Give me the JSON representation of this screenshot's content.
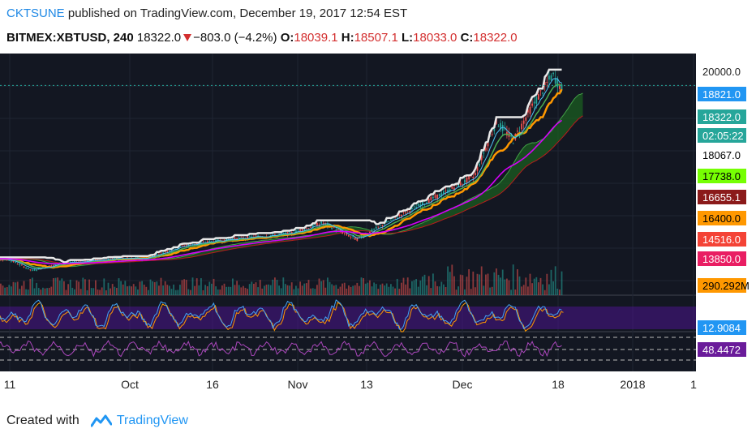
{
  "header": {
    "author": "CKTSUNE",
    "published_text": "published on TradingView.com, December 19, 2017 12:54 EST",
    "symbol": "BITMEX:XBTUSD, 240",
    "last": "18322.0",
    "change": "−803.0 (−4.2%)",
    "open_label": "O:",
    "open": "18039.1",
    "high_label": "H:",
    "high": "18507.1",
    "low_label": "L:",
    "low": "18033.0",
    "close_label": "C:",
    "close": "18322.0"
  },
  "footer": {
    "created_with": "Created with",
    "brand": "TradingView"
  },
  "colors": {
    "chart_bg": "#131722",
    "up": "#26a69a",
    "down": "#ef5350",
    "white_line": "#e8e8e8",
    "orange_line": "#ff9800",
    "green_line": "#4caf50",
    "magenta_line": "#d500f9",
    "cyan_line": "#4fc3f7",
    "cloud": "#1b5e20",
    "oscillator_band": "#4a148c"
  },
  "chart_data": {
    "type": "candlestick",
    "x_tick_labels": [
      "11",
      "Oct",
      "16",
      "Nov",
      "13",
      "Dec",
      "18",
      "2018",
      "1"
    ],
    "price_scale": {
      "top_label": "20000.0",
      "labels": [
        {
          "value": "18821.0",
          "bg": "#2196f3",
          "fg": "#ffffff"
        },
        {
          "value": "18322.0",
          "bg": "#26a69a",
          "fg": "#ffffff"
        },
        {
          "value": "02:05:22",
          "bg": "#26a69a",
          "fg": "#ffffff"
        },
        {
          "value": "18067.0",
          "bg": "#ffffff",
          "fg": "#000000"
        },
        {
          "value": "17738.0",
          "bg": "#76ff03",
          "fg": "#000000"
        },
        {
          "value": "16655.1",
          "bg": "#8b1a1a",
          "fg": "#ffffff"
        },
        {
          "value": "16400.0",
          "bg": "#ff9800",
          "fg": "#000000"
        },
        {
          "value": "14516.0",
          "bg": "#f44336",
          "fg": "#ffffff"
        },
        {
          "value": "13850.0",
          "bg": "#e91e63",
          "fg": "#ffffff"
        }
      ],
      "volume_label": {
        "value": "290.292M",
        "bg": "#ff9800",
        "fg": "#000000"
      }
    },
    "price_series_approx": [
      [
        "Sep 6",
        4300
      ],
      [
        "Sep 11",
        4200
      ],
      [
        "Sep 15",
        3300
      ],
      [
        "Sep 20",
        3900
      ],
      [
        "Sep 30",
        4300
      ],
      [
        "Oct 5",
        4300
      ],
      [
        "Oct 12",
        5400
      ],
      [
        "Oct 20",
        5900
      ],
      [
        "Oct 31",
        6400
      ],
      [
        "Nov 6",
        7300
      ],
      [
        "Nov 12",
        5900
      ],
      [
        "Nov 20",
        8000
      ],
      [
        "Nov 28",
        9900
      ],
      [
        "Dec 3",
        11200
      ],
      [
        "Dec 7",
        15800
      ],
      [
        "Dec 10",
        14200
      ],
      [
        "Dec 13",
        16800
      ],
      [
        "Dec 17",
        19700
      ],
      [
        "Dec 19",
        18322
      ]
    ],
    "rsi_label": {
      "value": "12.9084",
      "bg": "#2196f3",
      "fg": "#ffffff"
    },
    "cci_label": {
      "value": "48.4472",
      "bg": "#6a1b9a",
      "fg": "#ffffff"
    }
  }
}
